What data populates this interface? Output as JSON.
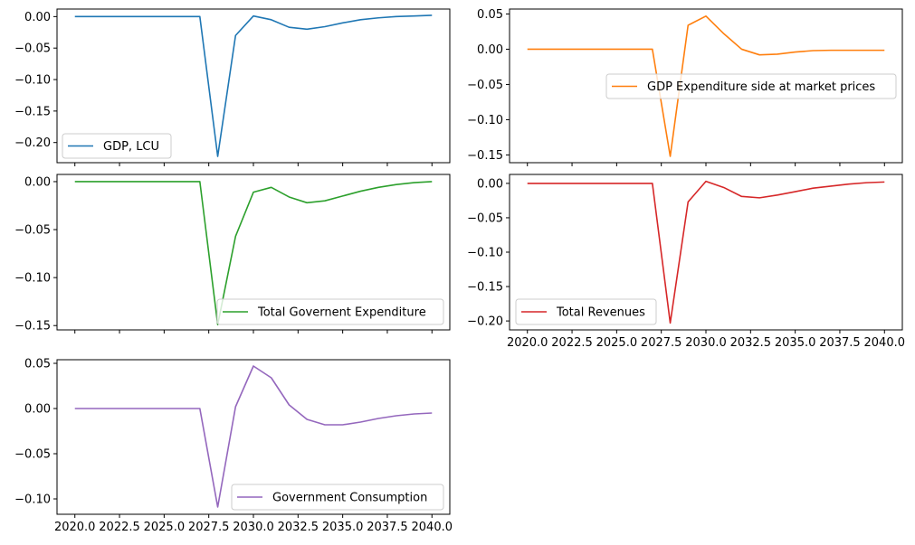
{
  "chart_data": [
    {
      "type": "line",
      "x": [
        2020,
        2021,
        2022,
        2023,
        2024,
        2025,
        2026,
        2027,
        2028,
        2029,
        2030,
        2031,
        2032,
        2033,
        2034,
        2035,
        2036,
        2037,
        2038,
        2039,
        2040
      ],
      "series": [
        {
          "name": "GDP, LCU",
          "color": "#1f77b4",
          "values": [
            0,
            0,
            0,
            0,
            0,
            0,
            0,
            0,
            -0.222,
            -0.03,
            0.001,
            -0.005,
            -0.017,
            -0.02,
            -0.016,
            -0.01,
            -0.005,
            -0.002,
            0,
            0.001,
            0.002
          ]
        }
      ],
      "ylim": [
        -0.232,
        0.012
      ],
      "yticks": [
        0.0,
        -0.05,
        -0.1,
        -0.15,
        -0.2
      ],
      "ytick_labels": [
        "0.00",
        "−0.05",
        "−0.10",
        "−0.15",
        "−0.20"
      ],
      "legend_position": "lower-left",
      "show_xtick_labels": false
    },
    {
      "type": "line",
      "x": [
        2020,
        2021,
        2022,
        2023,
        2024,
        2025,
        2026,
        2027,
        2028,
        2029,
        2030,
        2031,
        2032,
        2033,
        2034,
        2035,
        2036,
        2037,
        2038,
        2039,
        2040
      ],
      "series": [
        {
          "name": "GDP Expenditure side at market prices",
          "color": "#ff7f0e",
          "values": [
            0,
            0,
            0,
            0,
            0,
            0,
            0,
            0,
            -0.152,
            0.034,
            0.047,
            0.022,
            0,
            -0.008,
            -0.007,
            -0.004,
            -0.002,
            -0.0015,
            -0.0015,
            -0.0015,
            -0.0015
          ]
        }
      ],
      "ylim": [
        -0.161,
        0.057
      ],
      "yticks": [
        0.05,
        0.0,
        -0.05,
        -0.1,
        -0.15
      ],
      "ytick_labels": [
        "0.05",
        "0.00",
        "−0.05",
        "−0.10",
        "−0.15"
      ],
      "legend_position": "center-right",
      "show_xtick_labels": false
    },
    {
      "type": "line",
      "x": [
        2020,
        2021,
        2022,
        2023,
        2024,
        2025,
        2026,
        2027,
        2028,
        2029,
        2030,
        2031,
        2032,
        2033,
        2034,
        2035,
        2036,
        2037,
        2038,
        2039,
        2040
      ],
      "series": [
        {
          "name": "Total Governent Expenditure",
          "color": "#2ca02c",
          "values": [
            0,
            0,
            0,
            0,
            0,
            0,
            0,
            0,
            -0.149,
            -0.057,
            -0.011,
            -0.006,
            -0.016,
            -0.022,
            -0.02,
            -0.015,
            -0.01,
            -0.006,
            -0.003,
            -0.001,
            0
          ]
        }
      ],
      "ylim": [
        -0.1545,
        0.0075
      ],
      "yticks": [
        0.0,
        -0.05,
        -0.1,
        -0.15
      ],
      "ytick_labels": [
        "0.00",
        "−0.05",
        "−0.10",
        "−0.15"
      ],
      "legend_position": "lower-right",
      "show_xtick_labels": false
    },
    {
      "type": "line",
      "x": [
        2020,
        2021,
        2022,
        2023,
        2024,
        2025,
        2026,
        2027,
        2028,
        2029,
        2030,
        2031,
        2032,
        2033,
        2034,
        2035,
        2036,
        2037,
        2038,
        2039,
        2040
      ],
      "series": [
        {
          "name": "Total Revenues",
          "color": "#d62728",
          "values": [
            0,
            0,
            0,
            0,
            0,
            0,
            0,
            0,
            -0.203,
            -0.027,
            0.003,
            -0.006,
            -0.019,
            -0.021,
            -0.017,
            -0.012,
            -0.007,
            -0.004,
            -0.001,
            0.001,
            0.002
          ]
        }
      ],
      "ylim": [
        -0.213,
        0.013
      ],
      "yticks": [
        0.0,
        -0.05,
        -0.1,
        -0.15,
        -0.2
      ],
      "ytick_labels": [
        "0.00",
        "−0.05",
        "−0.10",
        "−0.15",
        "−0.20"
      ],
      "legend_position": "lower-left",
      "show_xtick_labels": true
    },
    {
      "type": "line",
      "x": [
        2020,
        2021,
        2022,
        2023,
        2024,
        2025,
        2026,
        2027,
        2028,
        2029,
        2030,
        2031,
        2032,
        2033,
        2034,
        2035,
        2036,
        2037,
        2038,
        2039,
        2040
      ],
      "series": [
        {
          "name": "Government Consumption",
          "color": "#9467bd",
          "values": [
            0,
            0,
            0,
            0,
            0,
            0,
            0,
            0,
            -0.109,
            0.002,
            0.047,
            0.034,
            0.004,
            -0.012,
            -0.018,
            -0.018,
            -0.015,
            -0.011,
            -0.008,
            -0.006,
            -0.005
          ]
        }
      ],
      "ylim": [
        -0.117,
        0.054
      ],
      "yticks": [
        0.05,
        0.0,
        -0.05,
        -0.1
      ],
      "ytick_labels": [
        "0.05",
        "0.00",
        "−0.05",
        "−0.10"
      ],
      "legend_position": "lower-right",
      "show_xtick_labels": true
    }
  ],
  "shared_x_axis": {
    "xlim": [
      2019.0,
      2041.0
    ],
    "xticks": [
      2020.0,
      2022.5,
      2025.0,
      2027.5,
      2030.0,
      2032.5,
      2035.0,
      2037.5,
      2040.0
    ],
    "xtick_labels": [
      "2020.0",
      "2022.5",
      "2025.0",
      "2027.5",
      "2030.0",
      "2032.5",
      "2035.0",
      "2037.5",
      "2040.0"
    ]
  }
}
